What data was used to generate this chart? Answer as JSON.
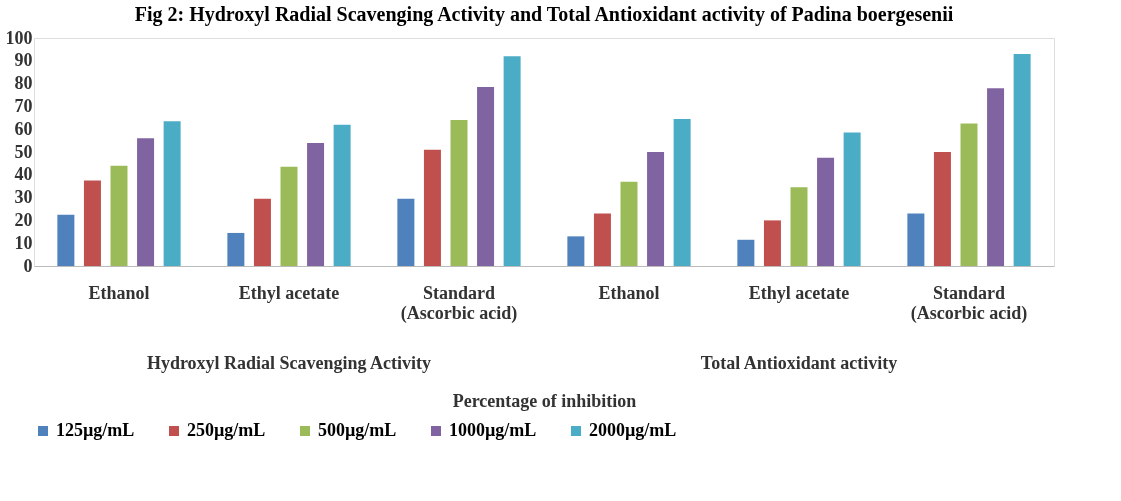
{
  "chart_data": {
    "type": "bar",
    "title": "Fig 2: Hydroxyl Radial Scavenging Activity and Total Antioxidant activity of Padina boergesenii",
    "xlabel": "Percentage of inhibition",
    "categories": [
      "Ethanol",
      "Ethyl acetate",
      "Standard (Ascorbic acid)",
      "Ethanol",
      "Ethyl acetate",
      "Standard (Ascorbic acid)"
    ],
    "annotations": [
      "Hydroxyl Radial Scavenging Activity",
      "Total Antioxidant activity"
    ],
    "series": [
      {
        "name": "125µg/mL",
        "color": "#4f81bd",
        "values": [
          22.5,
          14.5,
          29.5,
          13,
          11.5,
          23
        ]
      },
      {
        "name": "250µg/mL",
        "color": "#c0504d",
        "values": [
          37.5,
          29.5,
          51,
          23,
          20,
          50
        ]
      },
      {
        "name": "500µg/mL",
        "color": "#9bbb59",
        "values": [
          44,
          43.5,
          64,
          37,
          34.5,
          62.5
        ]
      },
      {
        "name": "1000µg/mL",
        "color": "#8064a2",
        "values": [
          56,
          54,
          78.5,
          50,
          47.5,
          78
        ]
      },
      {
        "name": "2000µg/mL",
        "color": "#4bacc6",
        "values": [
          63.5,
          62,
          92,
          64.5,
          58.5,
          93
        ]
      }
    ],
    "ylim": [
      0,
      100
    ],
    "yticks": [
      0,
      10,
      20,
      30,
      40,
      50,
      60,
      70,
      80,
      90,
      100
    ],
    "grid": false,
    "legend": "bottom"
  }
}
